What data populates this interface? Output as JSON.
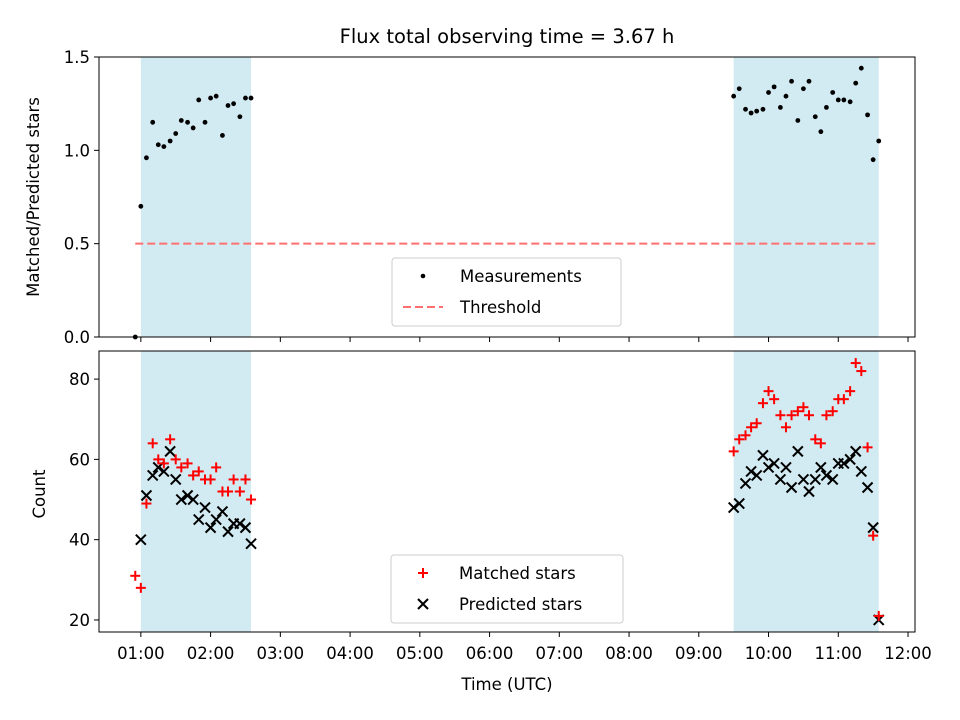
{
  "figure": {
    "title": "Flux total observing time = 3.67 h",
    "xlabel": "Time (UTC)"
  },
  "colors": {
    "span": "#add8e6",
    "threshold": "#ff6f6f",
    "matched": "#ff0000",
    "predicted": "#000000"
  },
  "chart_data": [
    {
      "type": "scatter",
      "ylabel": "Matched/Predicted stars",
      "xlim": [
        0.4,
        12.1
      ],
      "ylim": [
        0.0,
        1.5
      ],
      "yticks": [
        0.0,
        0.5,
        1.0,
        1.5
      ],
      "ytick_labels": [
        "0.0",
        "0.5",
        "1.0",
        "1.5"
      ],
      "shaded_spans": [
        [
          1.0,
          2.58
        ],
        [
          9.5,
          11.58
        ]
      ],
      "threshold": {
        "name": "Threshold",
        "y": 0.5,
        "x_range": [
          0.92,
          11.58
        ]
      },
      "legend": [
        "Measurements",
        "Threshold"
      ],
      "series": [
        {
          "name": "Measurements",
          "x": [
            0.92,
            1.0,
            1.08,
            1.17,
            1.25,
            1.33,
            1.42,
            1.5,
            1.58,
            1.67,
            1.75,
            1.83,
            1.92,
            2.0,
            2.08,
            2.17,
            2.25,
            2.33,
            2.42,
            2.5,
            2.58,
            9.5,
            9.58,
            9.67,
            9.75,
            9.83,
            9.92,
            10.0,
            10.08,
            10.17,
            10.25,
            10.33,
            10.42,
            10.5,
            10.58,
            10.67,
            10.75,
            10.83,
            10.92,
            11.0,
            11.08,
            11.17,
            11.25,
            11.33,
            11.42,
            11.5,
            11.58
          ],
          "y": [
            0.0,
            0.7,
            0.96,
            1.15,
            1.03,
            1.02,
            1.05,
            1.09,
            1.16,
            1.15,
            1.12,
            1.27,
            1.15,
            1.28,
            1.29,
            1.08,
            1.24,
            1.25,
            1.18,
            1.28,
            1.28,
            1.29,
            1.33,
            1.22,
            1.2,
            1.21,
            1.22,
            1.31,
            1.34,
            1.23,
            1.29,
            1.37,
            1.16,
            1.33,
            1.37,
            1.18,
            1.1,
            1.23,
            1.31,
            1.27,
            1.27,
            1.26,
            1.36,
            1.44,
            1.19,
            0.95,
            1.05
          ]
        }
      ]
    },
    {
      "type": "scatter",
      "ylabel": "Count",
      "xlim": [
        0.4,
        12.1
      ],
      "ylim": [
        17,
        87
      ],
      "yticks": [
        20,
        40,
        60,
        80
      ],
      "ytick_labels": [
        "20",
        "40",
        "60",
        "80"
      ],
      "xticks": [
        1,
        2,
        3,
        4,
        5,
        6,
        7,
        8,
        9,
        10,
        11,
        12
      ],
      "xtick_labels": [
        "01:00",
        "02:00",
        "03:00",
        "04:00",
        "05:00",
        "06:00",
        "07:00",
        "08:00",
        "09:00",
        "10:00",
        "11:00",
        "12:00"
      ],
      "shaded_spans": [
        [
          1.0,
          2.58
        ],
        [
          9.5,
          11.58
        ]
      ],
      "legend": [
        "Matched stars",
        "Predicted stars"
      ],
      "series": [
        {
          "name": "Matched stars",
          "marker": "+",
          "x": [
            0.92,
            1.0,
            1.08,
            1.17,
            1.25,
            1.33,
            1.42,
            1.5,
            1.58,
            1.67,
            1.75,
            1.83,
            1.92,
            2.0,
            2.08,
            2.17,
            2.25,
            2.33,
            2.42,
            2.5,
            2.58,
            9.5,
            9.58,
            9.67,
            9.75,
            9.83,
            9.92,
            10.0,
            10.08,
            10.17,
            10.25,
            10.33,
            10.42,
            10.5,
            10.58,
            10.67,
            10.75,
            10.83,
            10.92,
            11.0,
            11.08,
            11.17,
            11.25,
            11.33,
            11.42,
            11.5,
            11.58
          ],
          "y": [
            31,
            28,
            49,
            64,
            60,
            59,
            65,
            60,
            58,
            59,
            56,
            57,
            55,
            55,
            58,
            52,
            52,
            55,
            52,
            55,
            50,
            62,
            65,
            66,
            68,
            69,
            74,
            77,
            75,
            71,
            68,
            71,
            72,
            73,
            71,
            65,
            64,
            71,
            72,
            75,
            75,
            77,
            84,
            82,
            63,
            41,
            21
          ]
        },
        {
          "name": "Predicted stars",
          "marker": "x",
          "x": [
            1.0,
            1.08,
            1.17,
            1.25,
            1.33,
            1.42,
            1.5,
            1.58,
            1.67,
            1.75,
            1.83,
            1.92,
            2.0,
            2.08,
            2.17,
            2.25,
            2.33,
            2.42,
            2.5,
            2.58,
            9.5,
            9.58,
            9.67,
            9.75,
            9.83,
            9.92,
            10.0,
            10.08,
            10.17,
            10.25,
            10.33,
            10.42,
            10.5,
            10.58,
            10.67,
            10.75,
            10.83,
            10.92,
            11.0,
            11.08,
            11.17,
            11.25,
            11.33,
            11.42,
            11.5,
            11.58
          ],
          "y": [
            40,
            51,
            56,
            58,
            57,
            62,
            55,
            50,
            51,
            50,
            45,
            48,
            43,
            45,
            47,
            42,
            44,
            44,
            43,
            39,
            48,
            49,
            54,
            57,
            56,
            61,
            58,
            59,
            55,
            58,
            53,
            62,
            55,
            52,
            55,
            58,
            56,
            55,
            59,
            59,
            60,
            62,
            57,
            53,
            43,
            20
          ]
        }
      ]
    }
  ]
}
